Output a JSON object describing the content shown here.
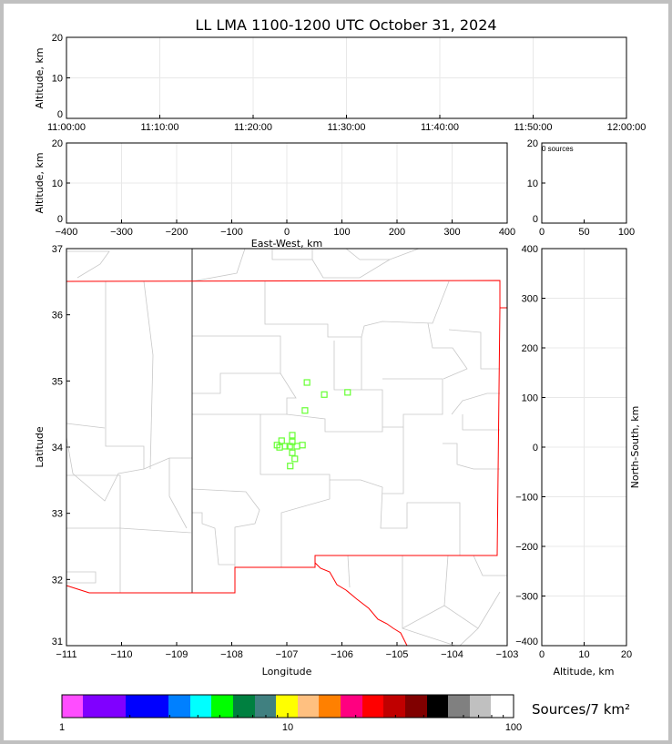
{
  "chart_data": [
    {
      "type": "scatter",
      "panel": "altitude-vs-time",
      "title": "LL LMA 1100-1200 UTC October 31, 2024",
      "ylabel": "Altitude, km",
      "xlim": [
        "11:00:00",
        "12:00:00"
      ],
      "ylim": [
        0,
        20
      ],
      "xticks": [
        "11:00:00",
        "11:10:00",
        "11:20:00",
        "11:30:00",
        "11:40:00",
        "11:50:00",
        "12:00:00"
      ],
      "yticks": [
        "0",
        "10",
        "20"
      ],
      "grid": true,
      "points": []
    },
    {
      "type": "scatter",
      "panel": "altitude-vs-east-west",
      "xlabel": "East-West, km",
      "ylabel": "Altitude, km",
      "xlim": [
        -400,
        400
      ],
      "ylim": [
        0,
        20
      ],
      "xticks": [
        "−400",
        "−300",
        "−200",
        "−100",
        "0",
        "100",
        "200",
        "300",
        "400"
      ],
      "yticks": [
        "0",
        "10",
        "20"
      ],
      "grid": true,
      "points": []
    },
    {
      "type": "histogram",
      "panel": "altitude-histogram",
      "annotation": "0 sources",
      "xlim": [
        0,
        100
      ],
      "ylim": [
        0,
        20
      ],
      "xticks": [
        "0",
        "50",
        "100"
      ],
      "yticks": [
        "0",
        "10",
        "20"
      ],
      "values": []
    },
    {
      "type": "scatter",
      "panel": "plan-view-map",
      "xlabel": "Longitude",
      "ylabel": "Latitude",
      "xlim": [
        -111.55,
        -102.85
      ],
      "ylim": [
        30.4,
        37.6
      ],
      "xticks": [
        "−111",
        "−110",
        "−109",
        "−108",
        "−107",
        "−106",
        "−105",
        "−104",
        "−103"
      ],
      "yticks": [
        "31",
        "32",
        "33",
        "34",
        "35",
        "36",
        "37"
      ],
      "marker_color": "#66ff33",
      "station_points": [
        [
          -106.8,
          35.16
        ],
        [
          -106.46,
          34.94
        ],
        [
          -106.0,
          34.98
        ],
        [
          -106.84,
          34.65
        ],
        [
          -107.09,
          34.2
        ],
        [
          -107.09,
          34.08
        ],
        [
          -107.3,
          34.1
        ],
        [
          -107.39,
          34.02
        ],
        [
          -107.23,
          34.0
        ],
        [
          -107.34,
          33.98
        ],
        [
          -107.14,
          34.0
        ],
        [
          -107.0,
          34.0
        ],
        [
          -106.89,
          34.02
        ],
        [
          -107.09,
          33.88
        ],
        [
          -107.04,
          33.77
        ],
        [
          -107.13,
          33.64
        ]
      ]
    },
    {
      "type": "scatter",
      "panel": "north-south-vs-altitude",
      "xlabel": "Altitude, km",
      "ylabel": "North-South, km",
      "xlim": [
        0,
        20
      ],
      "ylim": [
        -400,
        400
      ],
      "xticks": [
        "0",
        "10",
        "20"
      ],
      "yticks": [
        "400",
        "300",
        "200",
        "100",
        "0",
        "−100",
        "−200",
        "−300",
        "−400"
      ],
      "grid": true,
      "points": []
    }
  ],
  "colorbar": {
    "label": "Sources/7 km²",
    "scale": "log",
    "range": [
      1,
      100
    ],
    "tick_labels": [
      "1",
      "10",
      "100"
    ],
    "colors": [
      "#ff4dff",
      "#8000ff",
      "#0000ff",
      "#0080ff",
      "#00ffff",
      "#00ff00",
      "#008040",
      "#408080",
      "#ffff00",
      "#ffc080",
      "#ff8000",
      "#ff0080",
      "#ff0000",
      "#c00000",
      "#800000",
      "#000000",
      "#808080",
      "#c0c0c0",
      "#ffffff"
    ]
  }
}
